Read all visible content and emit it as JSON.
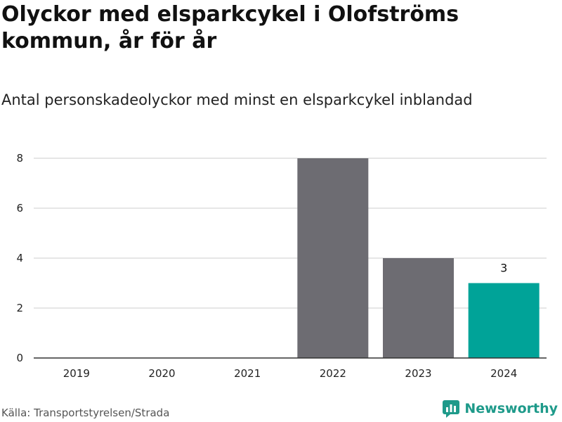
{
  "title": "Olyckor med elsparkcykel i Olofströms kommun, år för år",
  "subtitle": "Antal personskadeolyckor med minst en elsparkcykel inblandad",
  "source": "Källa: Transportstyrelsen/Strada",
  "brand": {
    "name": "Newsworthy",
    "icon": "newsworthy-logo-icon",
    "color": "#1e9a8a"
  },
  "chart_data": {
    "type": "bar",
    "categories": [
      "2019",
      "2020",
      "2021",
      "2022",
      "2023",
      "2024"
    ],
    "values": [
      0,
      0,
      0,
      8,
      4,
      3
    ],
    "ylim": [
      0,
      8
    ],
    "yticks": [
      0,
      2,
      4,
      6,
      8
    ],
    "grid": true,
    "colors": {
      "default": "#6d6c72",
      "highlight": "#00a398",
      "grid": "#dddddd",
      "axis": "#333333"
    },
    "highlight_index": 5,
    "data_labels": [
      {
        "category": "2024",
        "text": "3"
      }
    ]
  }
}
